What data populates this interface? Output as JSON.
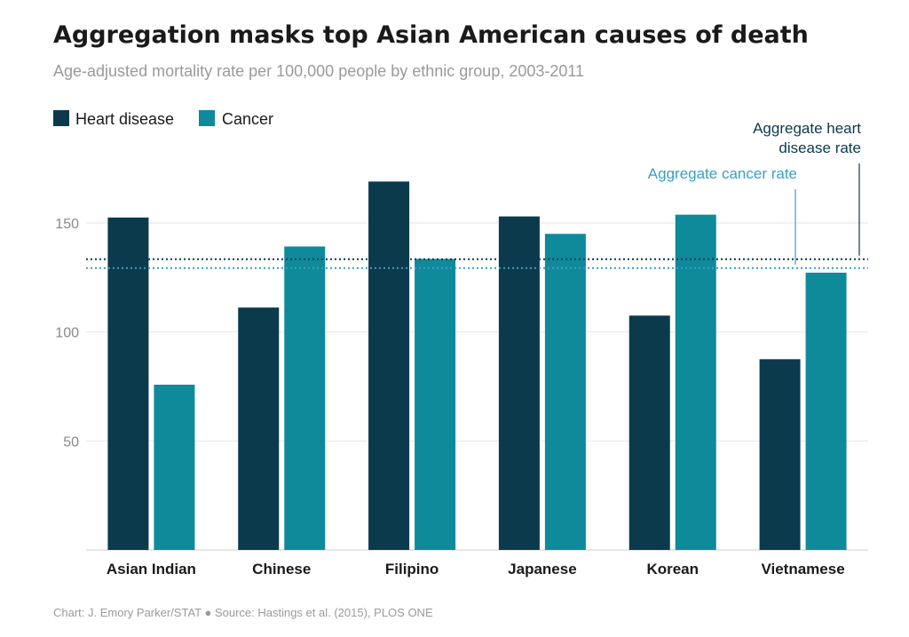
{
  "chart_data": {
    "type": "bar",
    "title": "Aggregation masks top Asian American causes of death",
    "subtitle": "Age-adjusted mortality rate per 100,000 people by ethnic group, 2003-2011",
    "categories": [
      "Asian Indian",
      "Chinese",
      "Filipino",
      "Japanese",
      "Korean",
      "Vietnamese"
    ],
    "series": [
      {
        "name": "Heart disease",
        "color": "#0b3a4d",
        "values": [
          152.5,
          111.2,
          169,
          153,
          107.5,
          87.5
        ]
      },
      {
        "name": "Cancer",
        "color": "#0e8a9b",
        "values": [
          75.8,
          139.2,
          133.5,
          145,
          153.8,
          127.2
        ]
      }
    ],
    "ylim": [
      0,
      183
    ],
    "yticks": [
      50,
      100,
      150
    ],
    "grid": true,
    "legend_position": "top-left",
    "reference_lines": [
      {
        "label_lines": [
          "Aggregate heart",
          "disease rate"
        ],
        "value": 133.4,
        "color": "#0b3a4d"
      },
      {
        "label_lines": [
          "Aggregate cancer rate"
        ],
        "value": 129.3,
        "color": "#3a9ec4"
      }
    ],
    "source": "Chart: J. Emory Parker/STAT ● Source: Hastings et al. (2015), PLOS ONE"
  }
}
